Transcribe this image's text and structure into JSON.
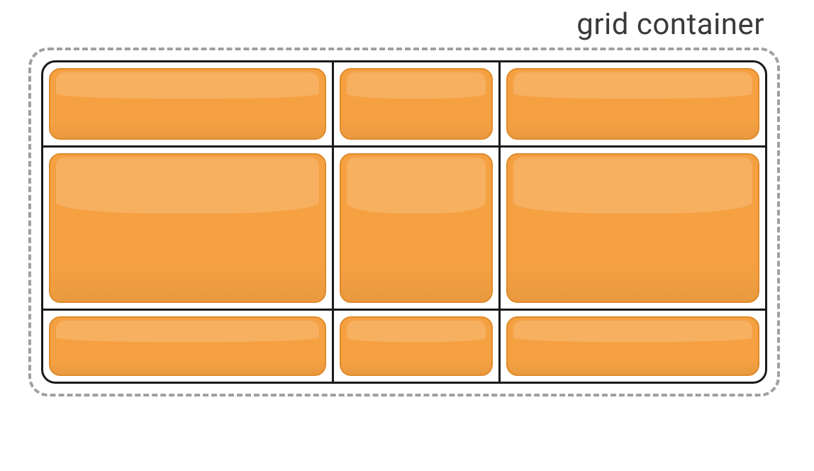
{
  "label": "grid container",
  "diagram_type": "infographic",
  "background_color": "#ffffff",
  "label_color": "#3a3a3a",
  "label_fontsize": 42,
  "container": {
    "border_style": "dashed",
    "border_width": 4,
    "border_color": "#a0a0a0",
    "border_radius": 28,
    "padding": 14
  },
  "grid": {
    "border_width": 3,
    "border_color": "#1a1a1a",
    "border_radius": 20,
    "columns": [
      "38.5fr",
      "22fr",
      "35fr"
    ],
    "rows": [
      "120px",
      "230px",
      "100px"
    ],
    "cells": 9,
    "cell_padding": 8
  },
  "item": {
    "fill_color": "#f5a142",
    "border_color": "#e08a2a",
    "highlight_color": "#f8bc7a",
    "border_radius": 16,
    "border_width": 2
  }
}
